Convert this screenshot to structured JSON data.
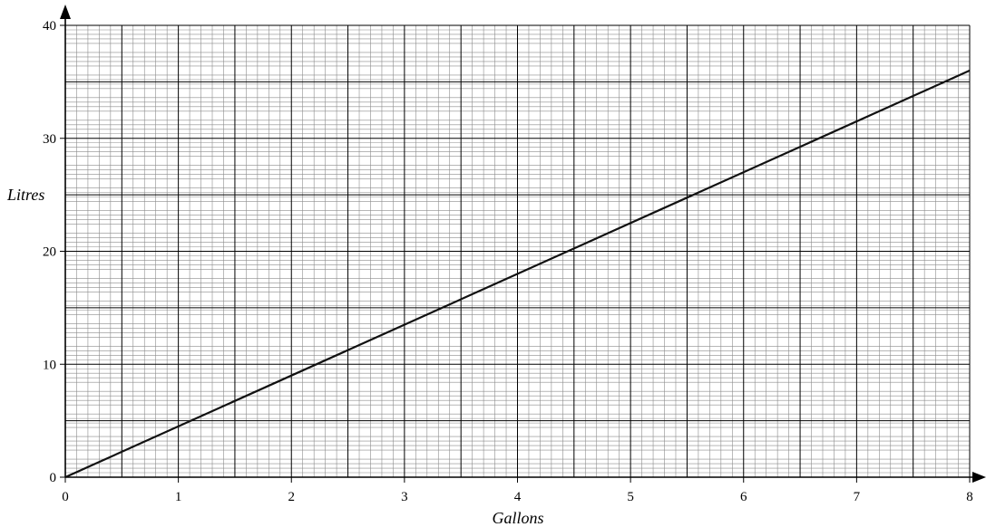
{
  "chart_data": {
    "type": "line",
    "title": "",
    "xlabel": "Gallons",
    "ylabel": "Litres",
    "xlim": [
      0,
      8
    ],
    "ylim": [
      0,
      40
    ],
    "x_ticks": [
      "0",
      "1",
      "2",
      "3",
      "4",
      "5",
      "6",
      "7",
      "8"
    ],
    "y_ticks": [
      "0",
      "10",
      "20",
      "30",
      "40"
    ],
    "grid": true,
    "legend": "none",
    "series": [
      {
        "x": [
          0,
          8
        ],
        "y": [
          0,
          36
        ],
        "color": "#111111"
      }
    ],
    "colors": {
      "major_grid": "#000000",
      "minor_grid": "#8c8c8c",
      "line": "#111111"
    }
  }
}
